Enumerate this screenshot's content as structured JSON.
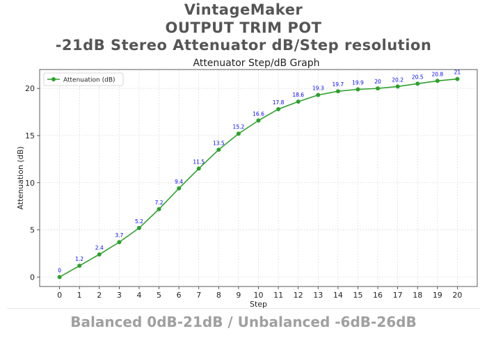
{
  "header": {
    "line1": "VintageMaker",
    "line2": "OUTPUT TRIM POT",
    "line3": "-21dB Stereo Attenuator dB/Step resolution"
  },
  "footer": {
    "text": "Balanced 0dB-21dB / Unbalanced -6dB-26dB"
  },
  "chart_data": {
    "type": "line",
    "title": "Attenuator Step/dB Graph",
    "xlabel": "Step",
    "ylabel": "Attenuation (dB)",
    "x": [
      0,
      1,
      2,
      3,
      4,
      5,
      6,
      7,
      8,
      9,
      10,
      11,
      12,
      13,
      14,
      15,
      16,
      17,
      18,
      19,
      20
    ],
    "series": [
      {
        "name": "Attenuation (dB)",
        "color": "#2ca02c",
        "values": [
          0,
          1.2,
          2.4,
          3.7,
          5.2,
          7.2,
          9.4,
          11.5,
          13.5,
          15.2,
          16.6,
          17.8,
          18.6,
          19.3,
          19.7,
          19.9,
          20,
          20.2,
          20.5,
          20.8,
          21
        ]
      }
    ],
    "data_labels": [
      "0",
      "1.2",
      "2.4",
      "3.7",
      "5.2",
      "7.2",
      "9.4",
      "11.5",
      "13.5",
      "15.2",
      "16.6",
      "17.8",
      "18.6",
      "19.3",
      "19.7",
      "19.9",
      "20",
      "20.2",
      "20.5",
      "20.8",
      "21"
    ],
    "data_label_color": "#0000ff",
    "xticks": [
      "0",
      "1",
      "2",
      "3",
      "4",
      "5",
      "6",
      "7",
      "8",
      "9",
      "10",
      "11",
      "12",
      "13",
      "14",
      "15",
      "16",
      "17",
      "18",
      "19",
      "20"
    ],
    "yticks": [
      "0",
      "5",
      "10",
      "15",
      "20"
    ],
    "xlim": [
      -1,
      21
    ],
    "ylim": [
      -1,
      22
    ],
    "grid": true,
    "legend_position": "top-left"
  }
}
